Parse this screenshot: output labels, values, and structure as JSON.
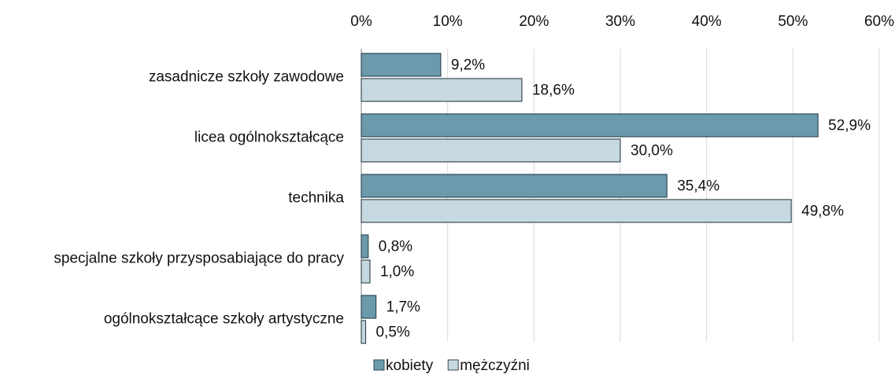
{
  "chart_data": {
    "type": "bar",
    "orientation": "horizontal",
    "categories": [
      "zasadnicze szkoły zawodowe",
      "licea ogólnokształcące",
      "technika",
      "specjalne szkoły przysposabiające do pracy",
      "ogólnokształcące szkoły artystyczne"
    ],
    "series": [
      {
        "name": "kobiety",
        "color": "#6b9aac",
        "values": [
          9.2,
          52.9,
          35.4,
          0.8,
          1.7
        ],
        "value_labels": [
          "9,2%",
          "52,9%",
          "35,4%",
          "0,8%",
          "1,7%"
        ]
      },
      {
        "name": "mężczyźni",
        "color": "#c6d9e0",
        "values": [
          18.6,
          30.0,
          49.8,
          1.0,
          0.5
        ],
        "value_labels": [
          "18,6%",
          "30,0%",
          "49,8%",
          "1,0%",
          "0,5%"
        ]
      }
    ],
    "xlim": [
      0,
      60
    ],
    "xticks": [
      {
        "value": 0,
        "label": "0%"
      },
      {
        "value": 10,
        "label": "10%"
      },
      {
        "value": 20,
        "label": "20%"
      },
      {
        "value": 30,
        "label": "30%"
      },
      {
        "value": 40,
        "label": "40%"
      },
      {
        "value": 50,
        "label": "50%"
      },
      {
        "value": 60,
        "label": "60%"
      }
    ],
    "grid": true,
    "legend": "bottom"
  }
}
